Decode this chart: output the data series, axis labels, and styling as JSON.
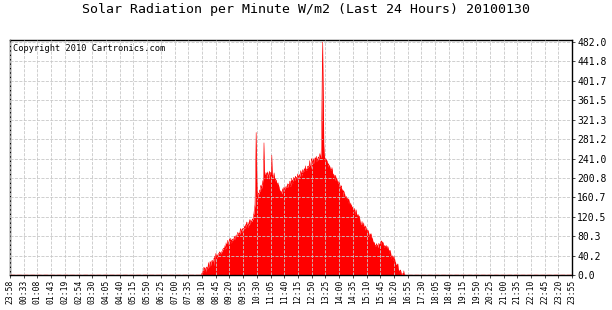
{
  "title": "Solar Radiation per Minute W/m2 (Last 24 Hours) 20100130",
  "copyright_text": "Copyright 2010 Cartronics.com",
  "background_color": "#ffffff",
  "plot_bg_color": "#ffffff",
  "fill_color": "#ff0000",
  "line_color": "#ff0000",
  "grid_color": "#c8c8c8",
  "dashed_line_color": "#ff0000",
  "ylabel_right_values": [
    0.0,
    40.2,
    80.3,
    120.5,
    160.7,
    200.8,
    241.0,
    281.2,
    321.3,
    361.5,
    401.7,
    441.8,
    482.0
  ],
  "ymax": 482.0,
  "ymin": 0.0,
  "x_tick_labels": [
    "23:58",
    "00:33",
    "01:08",
    "01:43",
    "02:19",
    "02:54",
    "03:30",
    "04:05",
    "04:40",
    "05:15",
    "05:50",
    "06:25",
    "07:00",
    "07:35",
    "08:10",
    "08:45",
    "09:20",
    "09:55",
    "10:30",
    "11:05",
    "11:40",
    "12:15",
    "12:50",
    "13:25",
    "14:00",
    "14:35",
    "15:10",
    "15:45",
    "16:20",
    "16:55",
    "17:30",
    "18:05",
    "18:40",
    "19:15",
    "19:50",
    "20:25",
    "21:00",
    "21:35",
    "22:10",
    "22:45",
    "23:20",
    "23:55"
  ],
  "num_points": 1440,
  "peak_value": 482.0
}
